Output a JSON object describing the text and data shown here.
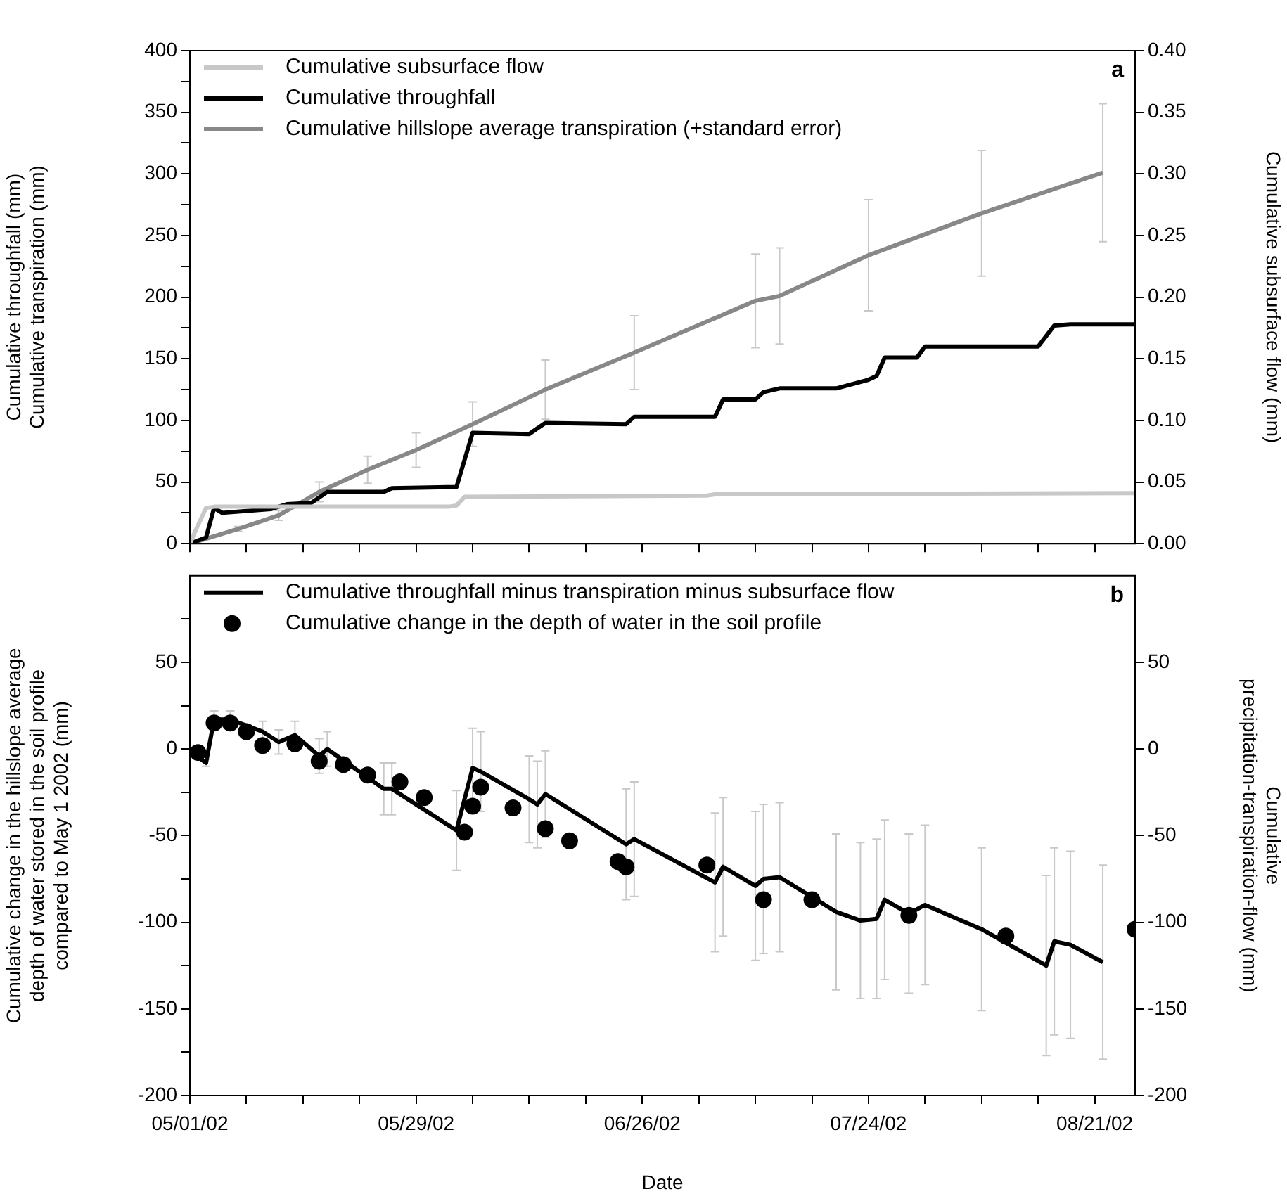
{
  "chart_data": [
    {
      "type": "line",
      "ylabel": "Cumulative throughfall (mm)\nCumulative transpiration (mm)",
      "y2label": "Cumulative subsurface flow (mm)",
      "annotations": [
        "a"
      ],
      "xlim": [
        "2002-05-01",
        "2002-08-26"
      ],
      "xticks": [
        {
          "value": "2002-05-01",
          "label": null
        },
        {
          "value": "2002-05-08",
          "label": null
        },
        {
          "value": "2002-05-15",
          "label": null
        },
        {
          "value": "2002-05-22",
          "label": null
        },
        {
          "value": "2002-05-29",
          "label": null
        },
        {
          "value": "2002-06-05",
          "label": null
        },
        {
          "value": "2002-06-12",
          "label": null
        },
        {
          "value": "2002-06-19",
          "label": null
        },
        {
          "value": "2002-06-26",
          "label": null
        },
        {
          "value": "2002-07-03",
          "label": null
        },
        {
          "value": "2002-07-10",
          "label": null
        },
        {
          "value": "2002-07-17",
          "label": null
        },
        {
          "value": "2002-07-24",
          "label": null
        },
        {
          "value": "2002-07-31",
          "label": null
        },
        {
          "value": "2002-08-07",
          "label": null
        },
        {
          "value": "2002-08-14",
          "label": null
        },
        {
          "value": "2002-08-21",
          "label": null
        }
      ],
      "ylim": [
        0,
        400
      ],
      "yticks": [
        0,
        {
          "value": 25,
          "label": null
        },
        50,
        {
          "value": 75,
          "label": null
        },
        100,
        {
          "value": 125,
          "label": null
        },
        150,
        {
          "value": 175,
          "label": null
        },
        200,
        {
          "value": 225,
          "label": null
        },
        250,
        {
          "value": 275,
          "label": null
        },
        300,
        {
          "value": 325,
          "label": null
        },
        350,
        {
          "value": 375,
          "label": null
        },
        400
      ],
      "y2lim": [
        0,
        0.4
      ],
      "y2ticks": [
        {
          "value": 0,
          "label": "0.00"
        },
        {
          "value": 0.05,
          "label": "0.05"
        },
        {
          "value": 0.1,
          "label": "0.10"
        },
        {
          "value": 0.15,
          "label": "0.15"
        },
        {
          "value": 0.2,
          "label": "0.20"
        },
        {
          "value": 0.25,
          "label": "0.25"
        },
        {
          "value": 0.3,
          "label": "0.30"
        },
        {
          "value": 0.35,
          "label": "0.35"
        },
        {
          "value": 0.4,
          "label": "0.40"
        }
      ],
      "tick_labels": "y",
      "grid": false,
      "legend": "top left",
      "marker": "none",
      "line_style": "solid",
      "series": [
        {
          "name": "Cumulative subsurface flow",
          "color": "#c8c8c8",
          "axis": "y2",
          "x": [
            "2002-05-01",
            "2002-05-02",
            "2002-05-03",
            "2002-05-04",
            "2002-06-02",
            "2002-06-03",
            "2002-06-04",
            "2002-07-04",
            "2002-07-05",
            "2002-08-26"
          ],
          "values": [
            0,
            0.015,
            0.029,
            0.03,
            0.03,
            0.031,
            0.038,
            0.039,
            0.04,
            0.041
          ]
        },
        {
          "name": "Cumulative throughfall",
          "color": "#000000",
          "x": [
            "2002-05-01",
            "2002-05-03",
            "2002-05-04",
            "2002-05-05",
            "2002-05-11",
            "2002-05-13",
            "2002-05-16",
            "2002-05-18",
            "2002-05-25",
            "2002-05-26",
            "2002-06-03",
            "2002-06-05",
            "2002-06-12",
            "2002-06-14",
            "2002-06-24",
            "2002-06-25",
            "2002-07-05",
            "2002-07-06",
            "2002-07-10",
            "2002-07-11",
            "2002-07-13",
            "2002-07-20",
            "2002-07-24",
            "2002-07-25",
            "2002-07-26",
            "2002-07-30",
            "2002-07-31",
            "2002-08-14",
            "2002-08-16",
            "2002-08-18",
            "2002-08-26"
          ],
          "values": [
            0,
            5,
            29,
            25,
            28,
            32,
            33,
            42,
            42,
            45,
            46,
            90,
            89,
            98,
            97,
            103,
            103,
            117,
            117,
            123,
            126,
            126,
            133,
            136,
            151,
            151,
            160,
            160,
            177,
            178,
            178
          ]
        },
        {
          "name": "Cumulative hillslope average transpiration (+standard error)",
          "color": "#888888",
          "x": [
            "2002-05-01",
            "2002-05-07",
            "2002-05-12",
            "2002-05-17",
            "2002-05-23",
            "2002-05-29",
            "2002-06-05",
            "2002-06-14",
            "2002-06-25",
            "2002-07-10",
            "2002-07-13",
            "2002-07-24",
            "2002-08-07",
            "2002-08-22"
          ],
          "values": [
            0,
            12,
            23,
            42,
            60,
            76,
            97,
            125,
            155,
            197,
            201,
            234,
            268,
            301
          ],
          "errors": [
            null,
            2,
            4,
            8,
            11,
            14,
            18,
            24,
            30,
            38,
            39,
            45,
            51,
            56
          ]
        }
      ]
    },
    {
      "type": "line",
      "xlabel": "Date",
      "ylabel": "Cumulative change in the hillslope average\ndepth of water stored in the soil profile\ncompared to May 1 2002 (mm)",
      "y2label": "Cumulative\nprecipitation-transpiration-flow (mm)",
      "annotations": [
        "b"
      ],
      "xlim": [
        "2002-05-01",
        "2002-08-26"
      ],
      "xticks": [
        {
          "value": "2002-05-01",
          "label": "05/01/02"
        },
        {
          "value": "2002-05-08",
          "label": null
        },
        {
          "value": "2002-05-15",
          "label": null
        },
        {
          "value": "2002-05-22",
          "label": null
        },
        {
          "value": "2002-05-29",
          "label": "05/29/02"
        },
        {
          "value": "2002-06-05",
          "label": null
        },
        {
          "value": "2002-06-12",
          "label": null
        },
        {
          "value": "2002-06-19",
          "label": null
        },
        {
          "value": "2002-06-26",
          "label": "06/26/02"
        },
        {
          "value": "2002-07-03",
          "label": null
        },
        {
          "value": "2002-07-10",
          "label": null
        },
        {
          "value": "2002-07-17",
          "label": null
        },
        {
          "value": "2002-07-24",
          "label": "07/24/02"
        },
        {
          "value": "2002-07-31",
          "label": null
        },
        {
          "value": "2002-08-07",
          "label": null
        },
        {
          "value": "2002-08-14",
          "label": null
        },
        {
          "value": "2002-08-21",
          "label": "08/21/02"
        }
      ],
      "ylim": [
        -200,
        100
      ],
      "yticks": [
        -200,
        {
          "value": -175,
          "label": null
        },
        -150,
        {
          "value": -125,
          "label": null
        },
        -100,
        {
          "value": -75,
          "label": null
        },
        -50,
        {
          "value": -25,
          "label": null
        },
        0,
        {
          "value": 25,
          "label": null
        },
        50,
        {
          "value": 75,
          "label": null
        }
      ],
      "y2lim": [
        -200,
        100
      ],
      "y2ticks": [
        -200,
        -150,
        -100,
        -50,
        0,
        50
      ],
      "grid": false,
      "legend": "top left",
      "line_style": "solid",
      "series": [
        {
          "name": "Cumulative throughfall minus transpiration minus subsurface flow",
          "color": "#000000",
          "type": "line",
          "x": [
            "2002-05-01",
            "2002-05-03",
            "2002-05-04",
            "2002-05-06",
            "2002-05-10",
            "2002-05-12",
            "2002-05-14",
            "2002-05-17",
            "2002-05-18",
            "2002-05-25",
            "2002-05-26",
            "2002-06-03",
            "2002-06-05",
            "2002-06-06",
            "2002-06-12",
            "2002-06-13",
            "2002-06-14",
            "2002-06-24",
            "2002-06-25",
            "2002-07-05",
            "2002-07-06",
            "2002-07-10",
            "2002-07-11",
            "2002-07-13",
            "2002-07-20",
            "2002-07-23",
            "2002-07-25",
            "2002-07-26",
            "2002-07-29",
            "2002-07-31",
            "2002-08-07",
            "2002-08-15",
            "2002-08-16",
            "2002-08-18",
            "2002-08-22"
          ],
          "values": [
            -1,
            -8,
            17,
            17,
            10,
            4,
            8,
            -4,
            0,
            -23,
            -23,
            -47,
            -11,
            -13,
            -29,
            -32,
            -26,
            -55,
            -52,
            -77,
            -68,
            -79,
            -75,
            -74,
            -94,
            -99,
            -98,
            -87,
            -95,
            -90,
            -104,
            -125,
            -111,
            -113,
            -123
          ],
          "errors": [
            null,
            2,
            5,
            5,
            6,
            7,
            8,
            10,
            10,
            15,
            15,
            23,
            23,
            23,
            25,
            25,
            25,
            32,
            33,
            40,
            40,
            43,
            43,
            43,
            45,
            45,
            46,
            46,
            46,
            46,
            47,
            52,
            54,
            54,
            56
          ]
        },
        {
          "name": "Cumulative change in the depth of water in the soil profile",
          "color": "#000000",
          "type": "scatter",
          "marker": "circle",
          "x": [
            "2002-05-02",
            "2002-05-04",
            "2002-05-06",
            "2002-05-08",
            "2002-05-10",
            "2002-05-14",
            "2002-05-17",
            "2002-05-20",
            "2002-05-23",
            "2002-05-27",
            "2002-05-30",
            "2002-06-04",
            "2002-06-05",
            "2002-06-06",
            "2002-06-10",
            "2002-06-14",
            "2002-06-17",
            "2002-06-23",
            "2002-06-24",
            "2002-07-04",
            "2002-07-11",
            "2002-07-17",
            "2002-07-29",
            "2002-08-10",
            "2002-08-26"
          ],
          "values": [
            -2,
            15,
            15,
            10,
            2,
            3,
            -7,
            -9,
            -15,
            -19,
            -28,
            -48,
            -33,
            -22,
            -34,
            -46,
            -53,
            -65,
            -68,
            -67,
            -87,
            -87,
            -96,
            -108,
            -104
          ]
        }
      ]
    }
  ]
}
